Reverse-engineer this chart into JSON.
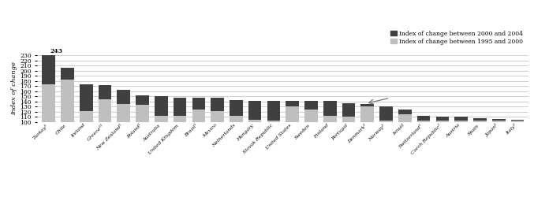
{
  "countries": [
    "Turkey¹",
    "Chile",
    "Ireland",
    "Greece¹²",
    "New Zealand¹",
    "Poland¹",
    "Australia",
    "United Kingdom",
    "Brazil¹",
    "Mexico",
    "Netherlands",
    "Hungary",
    "Slovak Republic",
    "United States",
    "Sweden",
    "Finland",
    "Portugal",
    "Denmark²",
    "Norway¹",
    "Israel",
    "Switzerland¹",
    "Czech Republic³",
    "Austria",
    "Spain",
    "Japan²",
    "Italy³"
  ],
  "val_1995_2000": [
    173,
    183,
    122,
    145,
    135,
    133,
    113,
    113,
    125,
    122,
    113,
    105,
    103,
    130,
    125,
    113,
    110,
    130,
    103,
    115,
    103,
    103,
    103,
    103,
    103,
    103
  ],
  "val_2000_2004": [
    70,
    22,
    52,
    27,
    27,
    19,
    37,
    35,
    23,
    25,
    30,
    37,
    38,
    12,
    17,
    28,
    27,
    5,
    27,
    10,
    10,
    8,
    8,
    5,
    3,
    2
  ],
  "color_1995_2000": "#bfbfbf",
  "color_2000_2004": "#404040",
  "ylabel": "Index of change",
  "ylim_min": 100,
  "ylim_max": 230,
  "yticks": [
    100,
    110,
    120,
    130,
    140,
    150,
    160,
    170,
    180,
    190,
    200,
    210,
    220,
    230
  ],
  "annotation_text": "243",
  "legend_label_dark": "Index of change between 2000 and 2004",
  "legend_label_light": "Index of change between 1995 and 2000",
  "background_color": "#ffffff",
  "grid_color": "#d0d0d0"
}
